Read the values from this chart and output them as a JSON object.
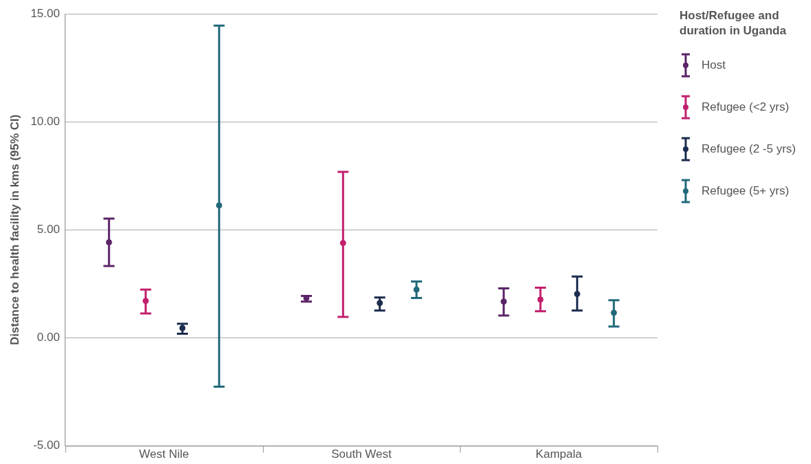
{
  "chart_data": {
    "type": "scatter",
    "ylabel": "Distance to health facility in kms (95% CI)",
    "legend_title": "Host/Refugee and duration in Uganda",
    "categories": [
      "West Nile",
      "South West",
      "Kampala"
    ],
    "ylim": [
      -5,
      15
    ],
    "yticks": [
      {
        "value": -5,
        "label": "-5.00"
      },
      {
        "value": 0,
        "label": "0.00"
      },
      {
        "value": 5,
        "label": "5.00"
      },
      {
        "value": 10,
        "label": "10.00"
      },
      {
        "value": 15,
        "label": "15.00"
      }
    ],
    "grid": "y",
    "legend": "right",
    "marker": "circle",
    "series": [
      {
        "name": "Host",
        "color": "#5c2468",
        "values": [
          4.42,
          1.84,
          1.68
        ],
        "errors": [
          [
            3.32,
            5.52
          ],
          [
            1.68,
            1.94
          ],
          [
            1.03,
            2.29
          ]
        ]
      },
      {
        "name": "Refugee (<2 yrs)",
        "color": "#c21f6d",
        "values": [
          1.71,
          4.39,
          1.77
        ],
        "errors": [
          [
            1.13,
            2.23
          ],
          [
            0.97,
            7.68
          ],
          [
            1.23,
            2.32
          ]
        ]
      },
      {
        "name": "Refugee (2 -5 yrs)",
        "color": "#1b2d4e",
        "values": [
          0.45,
          1.61,
          2.03
        ],
        "errors": [
          [
            0.19,
            0.65
          ],
          [
            1.26,
            1.87
          ],
          [
            1.26,
            2.84
          ]
        ]
      },
      {
        "name": "Refugee (5+ yrs)",
        "color": "#21697a",
        "values": [
          6.13,
          2.23,
          1.16
        ],
        "errors": [
          [
            -2.26,
            14.45
          ],
          [
            1.84,
            2.61
          ],
          [
            0.52,
            1.74
          ]
        ]
      }
    ]
  }
}
